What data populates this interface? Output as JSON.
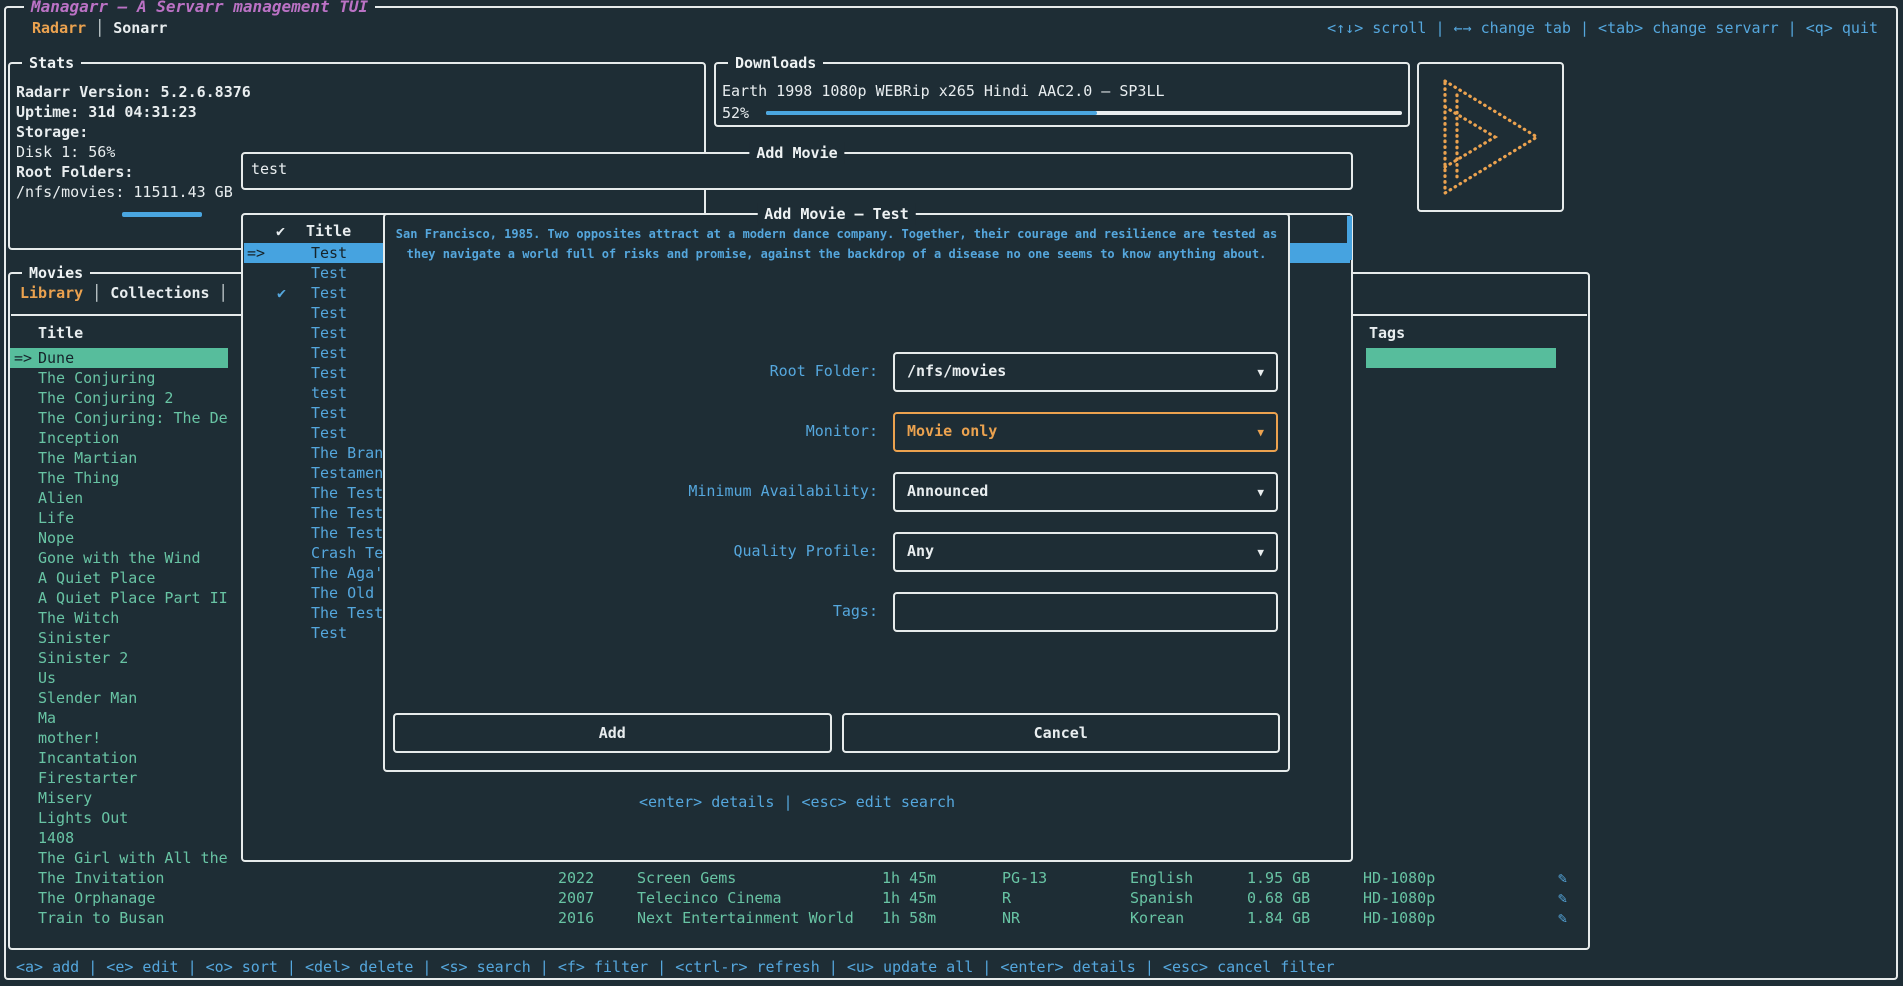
{
  "app": {
    "title": "Managarr – A Servarr management TUI",
    "tabs": [
      {
        "label": "Radarr",
        "active": true
      },
      {
        "label": "Sonarr",
        "active": false
      }
    ],
    "top_help": "<↑↓> scroll | ←→ change tab | <tab> change servarr | <q> quit",
    "footer_help": "<a> add | <e> edit | <o> sort | <del> delete | <s> search | <f> filter | <ctrl-r> refresh | <u> update all | <enter> details | <esc> cancel filter"
  },
  "stats": {
    "panel_title": "Stats",
    "version_line": "Radarr Version:  5.2.6.8376",
    "uptime_line": "Uptime: 31d 04:31:23",
    "storage_label": "Storage:",
    "disk_line": "Disk 1: 56%",
    "disk_percent": 56,
    "root_folders_label": "Root Folders:",
    "root_folder_usage": "/nfs/movies: 11511.43 GB"
  },
  "downloads": {
    "panel_title": "Downloads",
    "entry": "Earth 1998 1080p WEBRip x265 Hindi AAC2.0 – SP3LL",
    "percent_label": "52%",
    "percent": 52
  },
  "search": {
    "panel_title": "Add Movie",
    "value": "test"
  },
  "results": {
    "header_check": "✔",
    "header_title": "Title",
    "rows": [
      {
        "marker": "=>",
        "title": "Test",
        "selected": true
      },
      {
        "title": "Test"
      },
      {
        "check": "✔",
        "title": "Test"
      },
      {
        "title": "Test"
      },
      {
        "title": "Test"
      },
      {
        "title": "Test"
      },
      {
        "title": "Test"
      },
      {
        "title": "test"
      },
      {
        "title": "Test"
      },
      {
        "title": "Test"
      },
      {
        "title": "The Bran"
      },
      {
        "title": "Testamen"
      },
      {
        "title": "The Test"
      },
      {
        "title": "The Test"
      },
      {
        "title": "The Test"
      },
      {
        "title": "Crash Te"
      },
      {
        "title": "The Aga'"
      },
      {
        "title": "The Old"
      },
      {
        "title": "The Test"
      },
      {
        "title": "Test"
      }
    ],
    "help": "<enter> details | <esc> edit search"
  },
  "modal": {
    "title": "Add Movie – Test",
    "description_line1": "San Francisco, 1985. Two opposites attract at a modern dance company. Together, their courage and resilience are tested as",
    "description_line2": "they navigate a world full of risks and promise, against the backdrop of a disease no one seems to know anything about.",
    "fields": [
      {
        "label": "Root Folder:",
        "value": "/nfs/movies",
        "select": true
      },
      {
        "label": "Monitor:",
        "value": "Movie only",
        "select": true,
        "active": true
      },
      {
        "label": "Minimum Availability:",
        "value": "Announced",
        "select": true
      },
      {
        "label": "Quality Profile:",
        "value": "Any",
        "select": true
      },
      {
        "label": "Tags:",
        "value": ""
      }
    ],
    "dropdown_icon": "▼",
    "buttons": [
      {
        "label": "Add"
      },
      {
        "label": "Cancel"
      }
    ]
  },
  "movies": {
    "panel_title": "Movies",
    "tabs": [
      {
        "label": "Library",
        "active": true
      },
      {
        "label": "Collections",
        "active": false
      }
    ],
    "title_column": "Title",
    "tags_column": "Tags",
    "items": [
      {
        "marker": "=>",
        "title": "Dune",
        "selected": true
      },
      {
        "title": "The Conjuring"
      },
      {
        "title": "The Conjuring 2"
      },
      {
        "title": "The Conjuring: The De"
      },
      {
        "title": "Inception"
      },
      {
        "title": "The Martian"
      },
      {
        "title": "The Thing"
      },
      {
        "title": "Alien"
      },
      {
        "title": "Life"
      },
      {
        "title": "Nope"
      },
      {
        "title": "Gone with the Wind"
      },
      {
        "title": "A Quiet Place"
      },
      {
        "title": "A Quiet Place Part II"
      },
      {
        "title": "The Witch"
      },
      {
        "title": "Sinister"
      },
      {
        "title": "Sinister 2"
      },
      {
        "title": "Us"
      },
      {
        "title": "Slender Man"
      },
      {
        "title": "Ma"
      },
      {
        "title": "mother!"
      },
      {
        "title": "Incantation"
      },
      {
        "title": "Firestarter"
      },
      {
        "title": "Misery"
      },
      {
        "title": "Lights Out"
      },
      {
        "title": "1408"
      },
      {
        "title": "The Girl with All the"
      },
      {
        "title": "The Invitation"
      },
      {
        "title": "The Orphanage"
      },
      {
        "title": "Train to Busan"
      }
    ],
    "detail_rows": [
      {
        "year": "2022",
        "studio": "Screen Gems",
        "runtime": "1h 45m",
        "certification": "PG-13",
        "language": "English",
        "size": "1.95 GB",
        "quality": "HD-1080p",
        "icon": "✎"
      },
      {
        "year": "2007",
        "studio": "Telecinco Cinema",
        "runtime": "1h 45m",
        "certification": "R",
        "language": "Spanish",
        "size": "0.68 GB",
        "quality": "HD-1080p",
        "icon": "✎"
      },
      {
        "year": "2016",
        "studio": "Next Entertainment World",
        "runtime": "1h 58m",
        "certification": "NR",
        "language": "Korean",
        "size": "1.84 GB",
        "quality": "HD-1080p",
        "icon": "✎"
      }
    ]
  },
  "colors": {
    "background": "#1e2d35",
    "border": "#e6ebeb",
    "accent_blue": "#55a7dd",
    "accent_teal": "#68c4a4",
    "accent_orange": "#eba24f",
    "accent_purple": "#bb72c5",
    "selected_row_teal": "#57bd9c",
    "selected_row_blue": "#46a3e0",
    "progress_blue": "#4aa6e0"
  }
}
